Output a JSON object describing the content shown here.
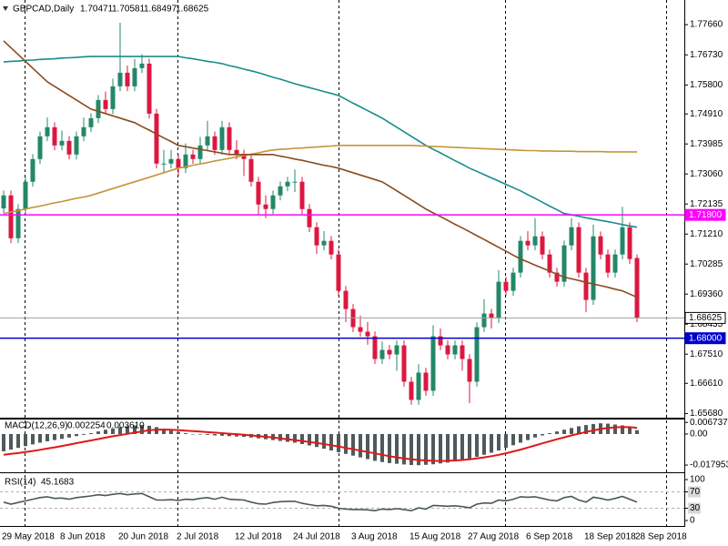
{
  "chart_data": [
    {
      "type": "candlestick",
      "title": "GBPCAD,Daily",
      "categories": [
        "29 May 2018",
        null,
        null,
        null,
        null,
        null,
        null,
        null,
        "8 Jun 2018",
        null,
        null,
        null,
        null,
        null,
        null,
        null,
        "20 Jun 2018",
        null,
        null,
        null,
        null,
        null,
        null,
        null,
        "2 Jul 2018",
        null,
        null,
        null,
        null,
        null,
        null,
        null,
        "12 Jul 2018",
        null,
        null,
        null,
        null,
        null,
        null,
        null,
        "24 Jul 2018",
        null,
        null,
        null,
        null,
        null,
        null,
        null,
        "3 Aug 2018",
        null,
        null,
        null,
        null,
        null,
        null,
        null,
        "15 Aug 2018",
        null,
        null,
        null,
        null,
        null,
        null,
        null,
        "27 Aug 2018",
        null,
        null,
        null,
        null,
        null,
        null,
        null,
        "6 Sep 2018",
        null,
        null,
        null,
        null,
        null,
        null,
        null,
        "18 Sep 2018",
        null,
        null,
        null,
        null,
        null,
        null,
        "28 Sep 2018"
      ],
      "open": [
        1.72,
        1.724,
        1.7108,
        1.7198,
        1.7282,
        1.7352,
        1.7422,
        1.745,
        1.7394,
        1.7408,
        1.7366,
        1.7422,
        1.745,
        1.7478,
        1.7534,
        1.7506,
        1.7576,
        1.7618,
        1.7576,
        1.7632,
        1.7646,
        1.7492,
        1.7338,
        1.7338,
        1.7352,
        1.7324,
        1.7366,
        1.7352,
        1.7394,
        1.7422,
        1.738,
        1.745,
        1.738,
        1.7366,
        1.7352,
        1.7282,
        1.7212,
        1.7198,
        1.724,
        1.7268,
        1.7282,
        1.7282,
        1.7198,
        1.7142,
        1.7086,
        1.71,
        1.7058,
        1.6946,
        1.689,
        1.6834,
        1.682,
        1.6806,
        1.6736,
        1.6764,
        1.675,
        1.6778,
        1.6666,
        1.661,
        1.6694,
        1.6638,
        1.6806,
        1.6778,
        1.675,
        1.6778,
        1.6736,
        1.6666,
        1.6834,
        1.6876,
        1.6862,
        1.6974,
        1.6946,
        1.7002,
        1.71,
        1.7086,
        1.7114,
        1.7058,
        1.7002,
        1.6974,
        1.7086,
        1.7142,
        1.7002,
        1.6918,
        1.7114,
        1.7058,
        1.7002,
        1.7058,
        1.7142,
        1.70471
      ],
      "high": [
        1.7255,
        1.7255,
        1.7213,
        1.7297,
        1.7367,
        1.7437,
        1.748,
        1.7465,
        1.744,
        1.7423,
        1.7437,
        1.748,
        1.7493,
        1.7549,
        1.756,
        1.76,
        1.7772,
        1.764,
        1.766,
        1.7675,
        1.7661,
        1.7507,
        1.738,
        1.738,
        1.7367,
        1.74,
        1.7381,
        1.742,
        1.747,
        1.7437,
        1.747,
        1.7465,
        1.741,
        1.7381,
        1.7367,
        1.7297,
        1.724,
        1.7255,
        1.7283,
        1.7297,
        1.732,
        1.7297,
        1.7213,
        1.7157,
        1.713,
        1.7115,
        1.7073,
        1.6961,
        1.6905,
        1.687,
        1.685,
        1.6821,
        1.679,
        1.6779,
        1.6793,
        1.6793,
        1.6681,
        1.672,
        1.6709,
        1.684,
        1.683,
        1.6793,
        1.6793,
        1.6793,
        1.6751,
        1.6849,
        1.692,
        1.6891,
        1.701,
        1.6989,
        1.7017,
        1.7115,
        1.713,
        1.717,
        1.7129,
        1.7073,
        1.7017,
        1.7101,
        1.717,
        1.7157,
        1.7017,
        1.715,
        1.7129,
        1.7073,
        1.7073,
        1.7205,
        1.7157,
        1.70581
      ],
      "low": [
        1.7185,
        1.7093,
        1.7093,
        1.7183,
        1.7267,
        1.7337,
        1.7407,
        1.7379,
        1.7379,
        1.7351,
        1.7351,
        1.7407,
        1.7435,
        1.7463,
        1.7491,
        1.7491,
        1.7561,
        1.7561,
        1.7561,
        1.7617,
        1.7477,
        1.7323,
        1.731,
        1.7323,
        1.73,
        1.7309,
        1.7337,
        1.7337,
        1.7379,
        1.7365,
        1.7365,
        1.7365,
        1.7351,
        1.73,
        1.7267,
        1.718,
        1.717,
        1.7183,
        1.7225,
        1.7253,
        1.725,
        1.7183,
        1.7127,
        1.706,
        1.7071,
        1.7043,
        1.6931,
        1.685,
        1.6819,
        1.6805,
        1.678,
        1.6721,
        1.6721,
        1.6735,
        1.67,
        1.6651,
        1.6595,
        1.6595,
        1.6623,
        1.6623,
        1.6763,
        1.6735,
        1.6735,
        1.67,
        1.66,
        1.6651,
        1.6819,
        1.683,
        1.6847,
        1.6931,
        1.6931,
        1.6987,
        1.7071,
        1.7071,
        1.7043,
        1.6987,
        1.6959,
        1.6959,
        1.7071,
        1.6987,
        1.688,
        1.6903,
        1.7043,
        1.6987,
        1.6987,
        1.7043,
        1.7029,
        1.68497
      ],
      "close": [
        1.724,
        1.7108,
        1.7198,
        1.7282,
        1.7352,
        1.7422,
        1.745,
        1.7394,
        1.7408,
        1.7366,
        1.7422,
        1.745,
        1.7478,
        1.7534,
        1.7506,
        1.7576,
        1.7618,
        1.7576,
        1.7632,
        1.7646,
        1.7492,
        1.7338,
        1.7338,
        1.7352,
        1.7324,
        1.7366,
        1.7352,
        1.7394,
        1.7422,
        1.738,
        1.745,
        1.738,
        1.7366,
        1.7352,
        1.7282,
        1.7212,
        1.7198,
        1.724,
        1.7268,
        1.7282,
        1.7282,
        1.7198,
        1.7142,
        1.7086,
        1.71,
        1.7058,
        1.6946,
        1.689,
        1.6834,
        1.682,
        1.6806,
        1.6736,
        1.6764,
        1.675,
        1.6778,
        1.6666,
        1.661,
        1.6694,
        1.6638,
        1.6806,
        1.6778,
        1.675,
        1.6778,
        1.6736,
        1.6666,
        1.6834,
        1.6876,
        1.6862,
        1.6974,
        1.6946,
        1.7002,
        1.71,
        1.7086,
        1.7114,
        1.7058,
        1.7002,
        1.6974,
        1.7086,
        1.7142,
        1.7002,
        1.6918,
        1.7114,
        1.7058,
        1.7002,
        1.7058,
        1.7142,
        1.7044,
        1.68625
      ],
      "up_color": "#24876a",
      "down_color": "#dc1740",
      "series": [
        {
          "color": "#1b8b8b",
          "values": [
            1.7651,
            1.7653,
            1.7654,
            1.7656,
            1.7657,
            1.7659,
            1.766,
            1.7661,
            1.7663,
            1.7664,
            1.7665,
            1.7667,
            1.7668,
            1.7668,
            1.7668,
            1.7668,
            1.7668,
            1.7668,
            1.7668,
            1.7668,
            1.7668,
            1.7668,
            1.7668,
            1.7668,
            1.7668,
            1.7664,
            1.7661,
            1.7657,
            1.7653,
            1.765,
            1.7646,
            1.764,
            1.7635,
            1.7629,
            1.7624,
            1.7618,
            1.7611,
            1.7604,
            1.7598,
            1.7591,
            1.7584,
            1.7578,
            1.7572,
            1.7566,
            1.756,
            1.7554,
            1.7548,
            1.7536,
            1.7524,
            1.7513,
            1.7501,
            1.749,
            1.7478,
            1.7464,
            1.745,
            1.7436,
            1.7422,
            1.7408,
            1.7394,
            1.7382,
            1.7371,
            1.7359,
            1.7347,
            1.7336,
            1.7324,
            1.7314,
            1.7304,
            1.7294,
            1.7284,
            1.7274,
            1.7264,
            1.7254,
            1.7242,
            1.7231,
            1.7219,
            1.7207,
            1.7196,
            1.7184,
            1.718,
            1.7176,
            1.7171,
            1.7167,
            1.7163,
            1.7159,
            1.7155,
            1.715,
            1.7146,
            1.7142
          ]
        },
        {
          "color": "#c4953a",
          "values": [
            1.7184,
            1.7189,
            1.7193,
            1.7198,
            1.7203,
            1.7207,
            1.7212,
            1.7217,
            1.7221,
            1.7226,
            1.7231,
            1.7235,
            1.724,
            1.7247,
            1.7254,
            1.7261,
            1.7268,
            1.7275,
            1.7282,
            1.7289,
            1.7296,
            1.7303,
            1.731,
            1.7317,
            1.7324,
            1.7328,
            1.7333,
            1.7337,
            1.7341,
            1.7346,
            1.735,
            1.7354,
            1.7359,
            1.7363,
            1.7367,
            1.7371,
            1.7376,
            1.738,
            1.7382,
            1.7383,
            1.7385,
            1.7386,
            1.7388,
            1.7389,
            1.7391,
            1.7392,
            1.7394,
            1.7394,
            1.7394,
            1.7394,
            1.7394,
            1.7394,
            1.7394,
            1.7394,
            1.7394,
            1.7394,
            1.7394,
            1.7393,
            1.7392,
            1.7391,
            1.739,
            1.7389,
            1.7388,
            1.7387,
            1.7386,
            1.7385,
            1.7384,
            1.7383,
            1.7382,
            1.7381,
            1.738,
            1.7379,
            1.7378,
            1.7378,
            1.7377,
            1.7377,
            1.7376,
            1.7376,
            1.7376,
            1.7375,
            1.7375,
            1.7375,
            1.7375,
            1.7374,
            1.7374,
            1.7374,
            1.7374,
            1.7374
          ]
        },
        {
          "color": "#8b4a1c",
          "values": [
            1.7716,
            1.7695,
            1.7674,
            1.7653,
            1.7632,
            1.7611,
            1.759,
            1.7576,
            1.7562,
            1.7548,
            1.7534,
            1.752,
            1.7506,
            1.7499,
            1.7492,
            1.7485,
            1.7478,
            1.7471,
            1.7464,
            1.7452,
            1.7441,
            1.7429,
            1.7417,
            1.7406,
            1.7394,
            1.739,
            1.7386,
            1.7382,
            1.7378,
            1.7374,
            1.737,
            1.7366,
            1.7366,
            1.7366,
            1.7366,
            1.7366,
            1.7366,
            1.7366,
            1.7361,
            1.7357,
            1.7352,
            1.7348,
            1.7343,
            1.7338,
            1.7333,
            1.7329,
            1.7324,
            1.7317,
            1.731,
            1.7303,
            1.7296,
            1.7289,
            1.7282,
            1.7268,
            1.7254,
            1.724,
            1.7226,
            1.7212,
            1.7198,
            1.7186,
            1.7175,
            1.7163,
            1.7151,
            1.714,
            1.7128,
            1.7116,
            1.7104,
            1.7092,
            1.708,
            1.7068,
            1.7056,
            1.7044,
            1.7035,
            1.7025,
            1.7016,
            1.7007,
            1.6997,
            1.6988,
            1.6983,
            1.6978,
            1.6972,
            1.6967,
            1.6962,
            1.6957,
            1.6951,
            1.6946,
            1.6936,
            1.6926
          ]
        }
      ],
      "hlines": [
        {
          "value": 1.718,
          "label": "1.71800",
          "color": "#ff00ff",
          "box_color": "#ff00ff"
        },
        {
          "value": 1.68625,
          "color": "#a0a0a0",
          "box_color": "#ffffff"
        },
        {
          "value": 1.68,
          "label": "1.68000",
          "color": "#0000cc",
          "box_color": "#0000cc"
        }
      ],
      "ylim": [
        1.6558,
        1.7842
      ],
      "yticks": [
        {
          "value": 1.7766,
          "label": "1.77660"
        },
        {
          "value": 1.7673,
          "label": "1.76730"
        },
        {
          "value": 1.758,
          "label": "1.75800"
        },
        {
          "value": 1.7491,
          "label": "1.74910"
        },
        1.73985,
        {
          "value": 1.7306,
          "label": "1.73060"
        },
        1.72135,
        {
          "value": 1.7121,
          "label": "1.71210"
        },
        1.70285,
        {
          "value": 1.6936,
          "label": "1.69360"
        },
        1.68435,
        {
          "value": 1.6751,
          "label": "1.67510"
        },
        {
          "value": 1.6661,
          "label": "1.66610"
        },
        {
          "value": 1.6568,
          "label": "1.65680"
        }
      ]
    },
    {
      "type": "bar",
      "title": "MACD(12,26,9)",
      "series": [
        {
          "type": "bar",
          "color": "#4f5a5a",
          "values": [
            -0.01,
            -0.009,
            -0.008,
            -0.007,
            -0.006,
            -0.005,
            -0.0042,
            -0.0035,
            -0.0028,
            -0.002,
            -0.0012,
            -0.0005,
            0.0005,
            0.0015,
            0.0025,
            0.0032,
            0.004,
            0.0045,
            0.005,
            0.0052,
            0.0048,
            0.004,
            0.003,
            0.002,
            0.0012,
            0.0005,
            0.0,
            -0.0003,
            -0.0005,
            -0.0008,
            -0.001,
            -0.0012,
            -0.0014,
            -0.0016,
            -0.002,
            -0.0025,
            -0.003,
            -0.0035,
            -0.004,
            -0.0045,
            -0.005,
            -0.0058,
            -0.0066,
            -0.0075,
            -0.0085,
            -0.0095,
            -0.0105,
            -0.0115,
            -0.0125,
            -0.0135,
            -0.0145,
            -0.0155,
            -0.0162,
            -0.0168,
            -0.0172,
            -0.0176,
            -0.0179,
            -0.018,
            -0.0178,
            -0.0175,
            -0.017,
            -0.0165,
            -0.0158,
            -0.015,
            -0.0142,
            -0.0132,
            -0.012,
            -0.0108,
            -0.0095,
            -0.008,
            -0.0065,
            -0.005,
            -0.0035,
            -0.002,
            -0.0008,
            0.0005,
            0.0015,
            0.0025,
            0.0035,
            0.0045,
            0.0052,
            0.0058,
            0.0062,
            0.006,
            0.0055,
            0.005,
            0.004,
            0.002254
          ]
        },
        {
          "type": "line",
          "color": "#e01818",
          "last_label": "0.003610",
          "values": [
            -0.012,
            -0.0115,
            -0.011,
            -0.0104,
            -0.0098,
            -0.0091,
            -0.0084,
            -0.0077,
            -0.0069,
            -0.0061,
            -0.0053,
            -0.0045,
            -0.0037,
            -0.0029,
            -0.0021,
            -0.0013,
            -0.0006,
            0.0001,
            0.0008,
            0.0015,
            0.0022,
            0.0025,
            0.0026,
            0.0025,
            0.0023,
            0.002,
            0.0017,
            0.0014,
            0.0011,
            0.0008,
            0.0005,
            0.0002,
            -0.0001,
            -0.0004,
            -0.0008,
            -0.0012,
            -0.0016,
            -0.002,
            -0.0025,
            -0.003,
            -0.0035,
            -0.004,
            -0.0046,
            -0.0052,
            -0.0058,
            -0.0065,
            -0.0072,
            -0.008,
            -0.0088,
            -0.0096,
            -0.0104,
            -0.0112,
            -0.012,
            -0.0128,
            -0.0135,
            -0.0141,
            -0.0146,
            -0.015,
            -0.0153,
            -0.0155,
            -0.0156,
            -0.0155,
            -0.0153,
            -0.015,
            -0.0146,
            -0.0141,
            -0.0135,
            -0.0128,
            -0.012,
            -0.0111,
            -0.0101,
            -0.009,
            -0.0078,
            -0.0066,
            -0.0054,
            -0.0042,
            -0.003,
            -0.0019,
            -0.0008,
            0.0002,
            0.0012,
            0.0021,
            0.0029,
            0.0035,
            0.0039,
            0.0041,
            0.004,
            0.00361
          ]
        }
      ],
      "ylim": [
        -0.0216,
        0.0084
      ],
      "yticks": [
        0.006737,
        {
          "value": 0,
          "label": "0.00"
        },
        -0.017953
      ]
    },
    {
      "type": "line",
      "title": "RSI(14)",
      "series": [
        {
          "color": "#4a5858",
          "values": [
            45,
            40,
            44,
            48,
            52,
            56,
            58,
            54,
            55,
            52,
            56,
            58,
            60,
            63,
            61,
            64,
            66,
            63,
            65,
            66,
            58,
            50,
            50,
            51,
            49,
            52,
            51,
            54,
            56,
            52,
            57,
            52,
            51,
            50,
            45,
            41,
            40,
            44,
            46,
            47,
            47,
            42,
            39,
            36,
            37,
            35,
            30,
            28,
            27,
            27,
            26,
            24,
            28,
            27,
            29,
            27,
            24,
            31,
            28,
            37,
            36,
            35,
            36,
            34,
            31,
            40,
            43,
            42,
            50,
            48,
            52,
            58,
            57,
            58,
            54,
            50,
            48,
            56,
            59,
            50,
            45,
            57,
            54,
            50,
            54,
            59,
            52,
            45.1683
          ]
        }
      ],
      "levels": [
        70,
        30
      ],
      "ylim": [
        -13.3,
        115.6
      ],
      "yticks": [
        100,
        70,
        30,
        0
      ]
    }
  ]
}
